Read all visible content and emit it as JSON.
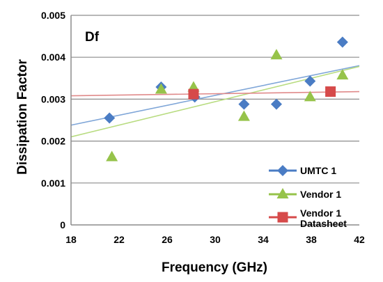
{
  "chart_data": {
    "type": "scatter",
    "title": "",
    "annotation": "Df",
    "xlabel": "Frequency (GHz)",
    "ylabel": "Dissipation Factor",
    "xlim": [
      18,
      42
    ],
    "ylim": [
      0,
      0.005
    ],
    "xticks": [
      "18",
      "22",
      "26",
      "30",
      "34",
      "38",
      "42"
    ],
    "yticks": [
      "0",
      "0.001",
      "0.002",
      "0.003",
      "0.004",
      "0.005"
    ],
    "grid": "horizontal",
    "legend_position": "bottom-right",
    "series": [
      {
        "name": "UMTC 1",
        "marker": "diamond",
        "color": "#4a7cc4",
        "trend_color": "#7fa6d8",
        "trend_y": [
          0.00238,
          0.0038
        ],
        "points": [
          [
            21.2,
            0.00255
          ],
          [
            25.5,
            0.00329
          ],
          [
            28.3,
            0.00305
          ],
          [
            32.4,
            0.00288
          ],
          [
            35.1,
            0.00288
          ],
          [
            37.9,
            0.00343
          ],
          [
            40.6,
            0.00436
          ]
        ]
      },
      {
        "name": "Vendor 1",
        "marker": "triangle",
        "color": "#96c34a",
        "trend_color": "#b8dc80",
        "trend_y": [
          0.0021,
          0.00378
        ],
        "points": [
          [
            21.4,
            0.00162
          ],
          [
            25.5,
            0.00323
          ],
          [
            28.2,
            0.00328
          ],
          [
            32.4,
            0.00258
          ],
          [
            35.1,
            0.00405
          ],
          [
            37.9,
            0.00305
          ],
          [
            40.6,
            0.00357
          ]
        ]
      },
      {
        "name_lines": [
          "Vendor 1",
          "Datasheet"
        ],
        "marker": "square",
        "color": "#d64a4a",
        "trend_color": "#e08a8a",
        "trend_y": [
          0.00308,
          0.00318
        ],
        "points": [
          [
            28.2,
            0.00312
          ],
          [
            39.6,
            0.00318
          ]
        ]
      }
    ]
  }
}
